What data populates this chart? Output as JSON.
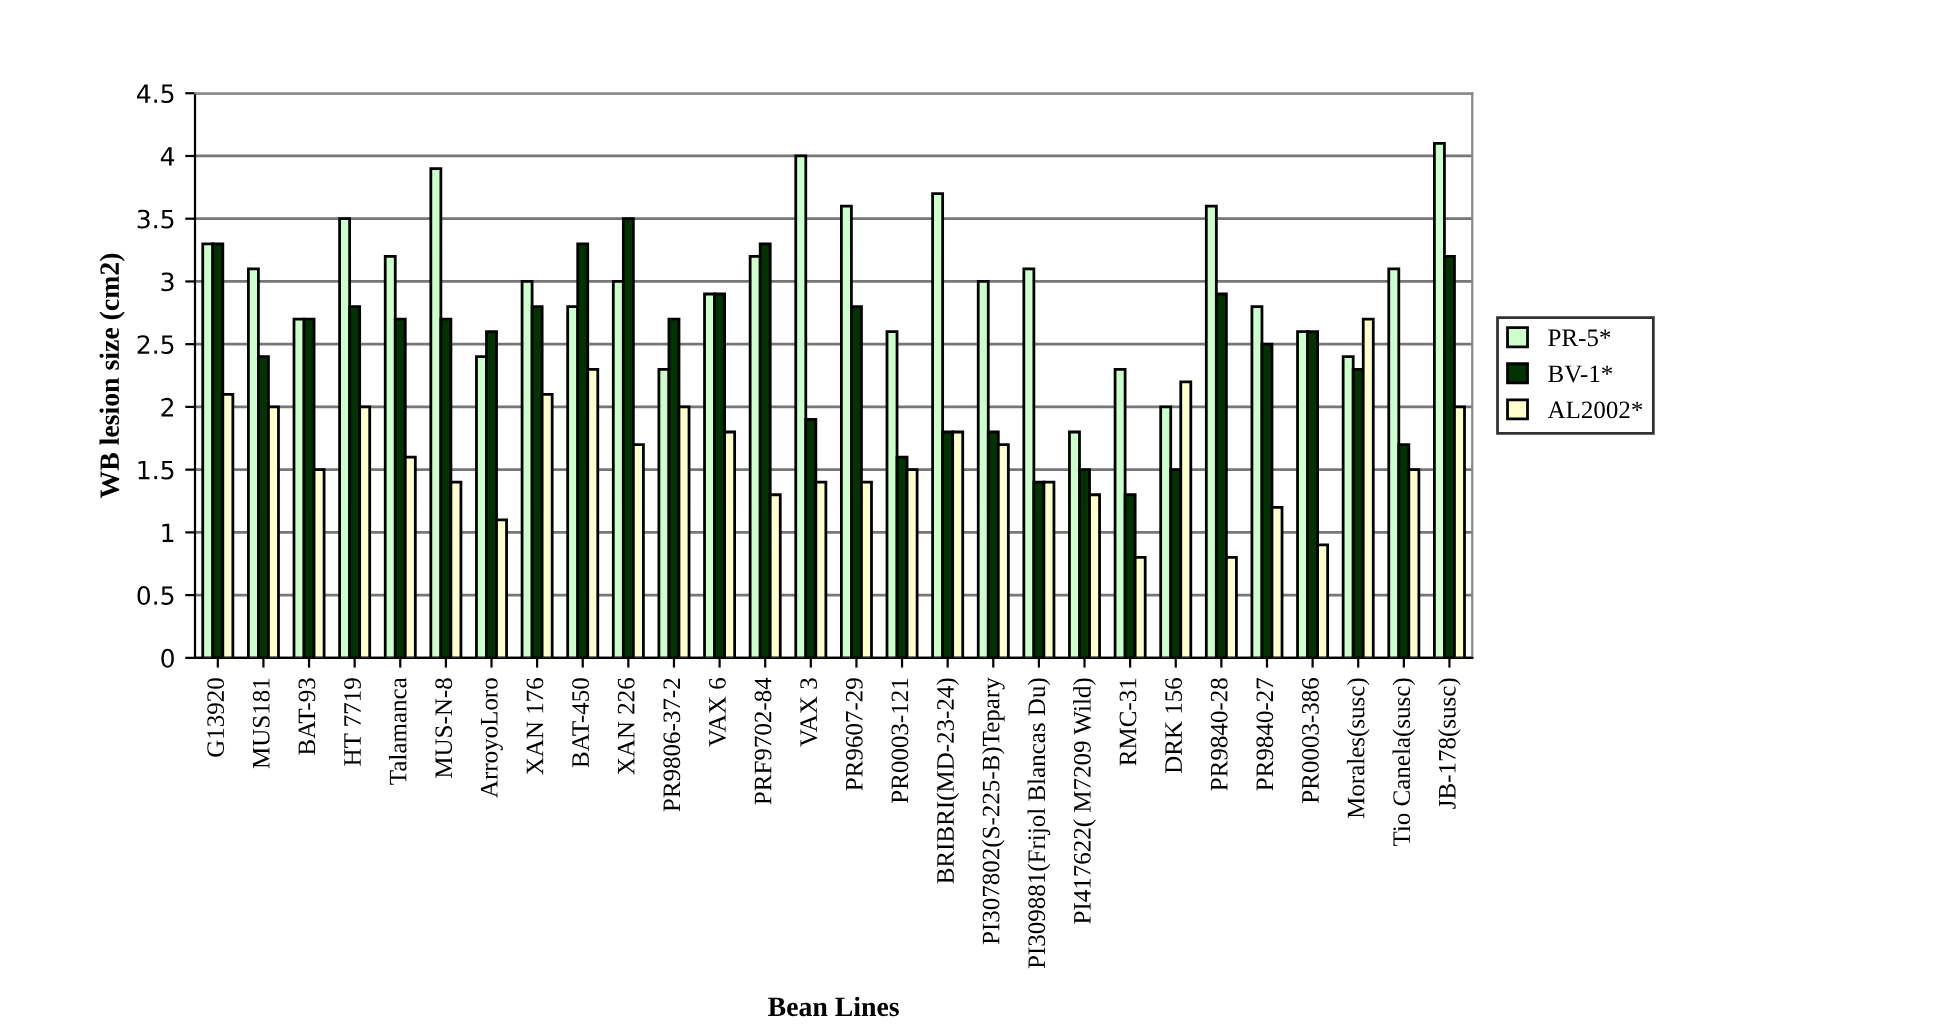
{
  "chart_data": {
    "type": "bar",
    "xlabel": "Bean Lines",
    "ylabel": "WB lesion size (cm2)",
    "categories": [
      "G13920",
      "MUS181",
      "BAT-93",
      "HT 7719",
      "Talamanca",
      "MUS-N-8",
      "ArroyoLoro",
      "XAN 176",
      "BAT-450",
      "XAN 226",
      "PR9806-37-2",
      "VAX 6",
      "PRF9702-84",
      "VAX 3",
      "PR9607-29",
      "PR0003-121",
      "BRIBRI(MD-23-24)",
      "PI307802(S-225-B)Tepary",
      "PI309881(Frijol Blancas Du)",
      "PI417622( M7209 Wild)",
      "RMC-31",
      "DRK 156",
      "PR9840-28",
      "PR9840-27",
      "PR0003-386",
      "Morales(susc)",
      "Tio Canela(susc)",
      "JB-178(susc)"
    ],
    "series": [
      {
        "name": "PR-5*",
        "color": "#ccffcc",
        "values": [
          3.3,
          3.1,
          2.7,
          3.5,
          3.2,
          3.9,
          2.4,
          3.0,
          2.8,
          3.0,
          2.3,
          2.9,
          3.2,
          4.0,
          3.6,
          2.6,
          3.7,
          3.0,
          3.1,
          1.8,
          2.3,
          2.0,
          3.6,
          2.8,
          2.6,
          2.4,
          3.1,
          4.1
        ]
      },
      {
        "name": "BV-1*",
        "color": "#003300",
        "values": [
          3.3,
          2.4,
          2.7,
          2.8,
          2.7,
          2.7,
          2.6,
          2.8,
          3.3,
          3.5,
          2.7,
          2.9,
          3.3,
          1.9,
          2.8,
          1.6,
          1.8,
          1.8,
          1.4,
          1.5,
          1.3,
          1.5,
          2.9,
          2.5,
          2.6,
          2.3,
          1.7,
          3.2
        ]
      },
      {
        "name": "AL2002*",
        "color": "#ffffcc",
        "values": [
          2.1,
          2.0,
          1.5,
          2.0,
          1.6,
          1.4,
          1.1,
          2.1,
          2.3,
          1.7,
          2.0,
          1.8,
          1.3,
          1.4,
          1.4,
          1.5,
          1.8,
          1.7,
          1.4,
          1.3,
          0.8,
          2.2,
          0.8,
          1.2,
          0.9,
          2.7,
          1.5,
          2.0
        ]
      }
    ],
    "ylim": [
      0,
      4.5
    ],
    "yticks": [
      0,
      0.5,
      1,
      1.5,
      2,
      2.5,
      3,
      3.5,
      4,
      4.5
    ],
    "grid": "y",
    "legend": "right"
  }
}
